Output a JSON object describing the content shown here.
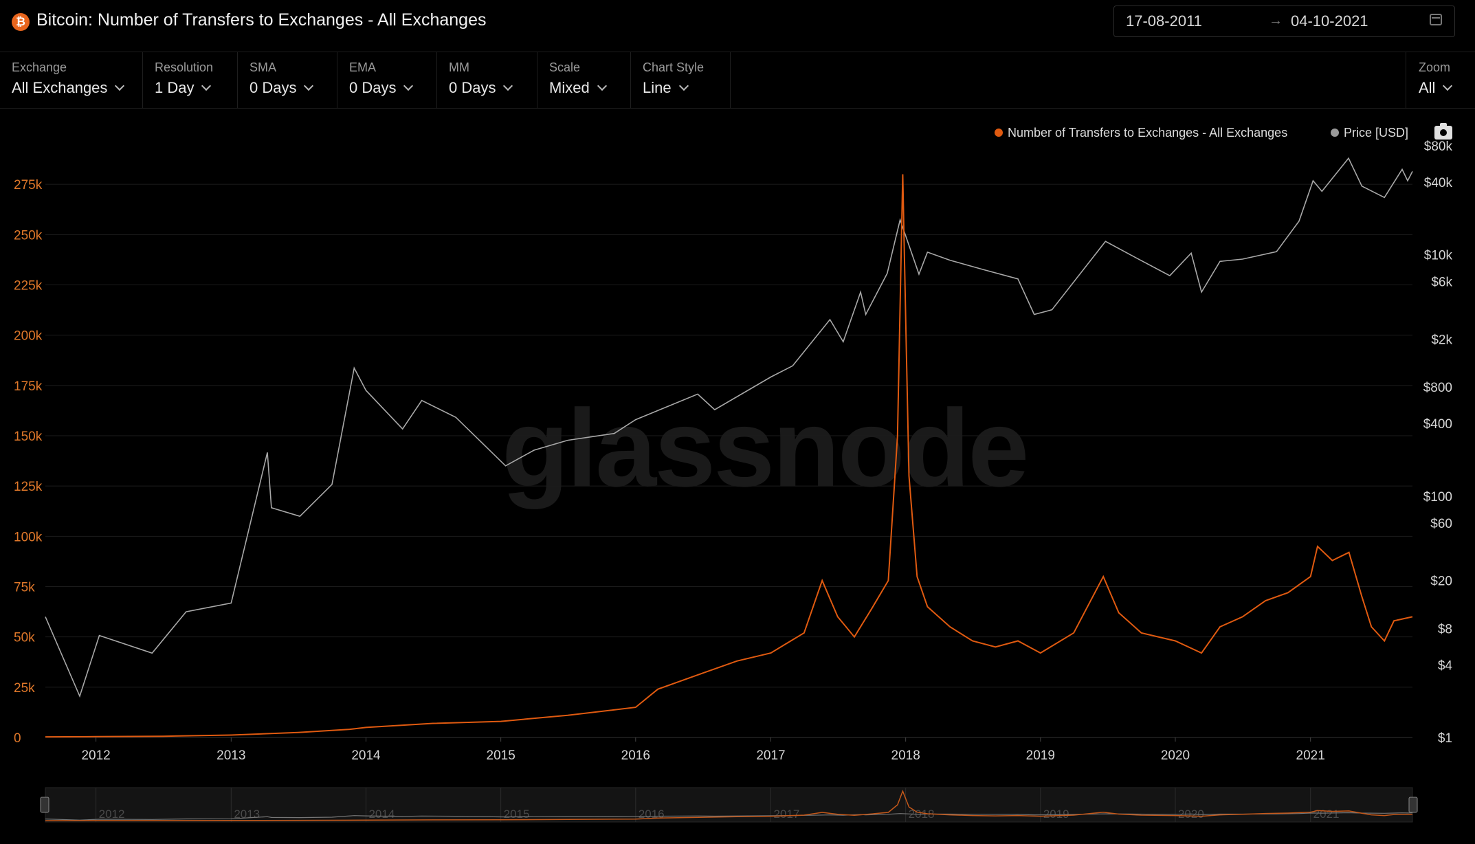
{
  "header": {
    "title": "Bitcoin: Number of Transfers to Exchanges - All Exchanges",
    "logo_glyph": "₿",
    "date_from": "17-08-2011",
    "date_arrow": "→",
    "date_to": "04-10-2021",
    "calendar_icon": "calendar-icon"
  },
  "toolbar": [
    {
      "label": "Exchange",
      "value": "All Exchanges"
    },
    {
      "label": "Resolution",
      "value": "1 Day"
    },
    {
      "label": "SMA",
      "value": "0 Days"
    },
    {
      "label": "EMA",
      "value": "0 Days"
    },
    {
      "label": "MM",
      "value": "0 Days"
    },
    {
      "label": "Scale",
      "value": "Mixed"
    },
    {
      "label": "Chart Style",
      "value": "Line"
    }
  ],
  "zoom": {
    "label": "Zoom",
    "value": "All"
  },
  "legend": {
    "series1": "Number of Transfers to Exchanges - All Exchanges",
    "series2": "Price [USD]",
    "camera_icon": "camera-icon"
  },
  "watermark": "glassnode",
  "colors": {
    "transfers": "#e05a10",
    "price": "#a0a0a0",
    "background": "#000000"
  },
  "chart_data": {
    "type": "line",
    "x_range": [
      "2011-08-17",
      "2021-10-04"
    ],
    "x_ticks": [
      "2012",
      "2013",
      "2014",
      "2015",
      "2016",
      "2017",
      "2018",
      "2019",
      "2020",
      "2021"
    ],
    "y_left": {
      "ticks": [
        "0",
        "25k",
        "50k",
        "75k",
        "100k",
        "125k",
        "150k",
        "175k",
        "200k",
        "225k",
        "250k",
        "275k"
      ],
      "range": [
        0,
        300000
      ],
      "scale": "linear"
    },
    "y_right": {
      "ticks": [
        "$1",
        "$4",
        "$8",
        "$20",
        "$60",
        "$100",
        "$400",
        "$800",
        "$2k",
        "$6k",
        "$10k",
        "$40k",
        "$80k"
      ],
      "range": [
        1,
        100000
      ],
      "scale": "log"
    },
    "grid": true,
    "legend_position": "top-right",
    "series": [
      {
        "name": "Number of Transfers to Exchanges - All Exchanges",
        "axis": "left",
        "x": [
          "2011-08-17",
          "2012-01-01",
          "2012-07-01",
          "2013-01-01",
          "2013-07-01",
          "2013-11-15",
          "2014-01-01",
          "2014-07-01",
          "2015-01-01",
          "2015-03-01",
          "2015-07-01",
          "2016-01-01",
          "2016-03-01",
          "2016-07-01",
          "2016-10-01",
          "2017-01-01",
          "2017-04-01",
          "2017-05-20",
          "2017-07-01",
          "2017-08-15",
          "2017-10-01",
          "2017-11-15",
          "2017-12-10",
          "2017-12-24",
          "2018-01-02",
          "2018-01-10",
          "2018-02-01",
          "2018-03-01",
          "2018-05-01",
          "2018-07-01",
          "2018-09-01",
          "2018-11-01",
          "2019-01-01",
          "2019-04-01",
          "2019-06-20",
          "2019-08-01",
          "2019-10-01",
          "2020-01-01",
          "2020-03-12",
          "2020-05-01",
          "2020-07-01",
          "2020-09-01",
          "2020-11-01",
          "2021-01-01",
          "2021-01-20",
          "2021-03-01",
          "2021-04-15",
          "2021-05-20",
          "2021-06-15",
          "2021-07-20",
          "2021-08-15",
          "2021-10-04"
        ],
        "y": [
          300,
          400,
          600,
          1200,
          2500,
          4000,
          5000,
          7000,
          8000,
          9000,
          11000,
          15000,
          24000,
          32000,
          38000,
          42000,
          52000,
          78000,
          60000,
          50000,
          64000,
          78000,
          150000,
          280000,
          200000,
          130000,
          80000,
          65000,
          55000,
          48000,
          45000,
          48000,
          42000,
          52000,
          80000,
          62000,
          52000,
          48000,
          42000,
          55000,
          60000,
          68000,
          72000,
          80000,
          95000,
          88000,
          92000,
          70000,
          55000,
          48000,
          58000,
          60000
        ]
      },
      {
        "name": "Price [USD]",
        "axis": "right",
        "x": [
          "2011-08-17",
          "2011-11-18",
          "2012-01-10",
          "2012-06-01",
          "2012-09-01",
          "2013-01-01",
          "2013-04-09",
          "2013-04-20",
          "2013-07-06",
          "2013-10-01",
          "2013-11-30",
          "2014-01-01",
          "2014-04-10",
          "2014-06-01",
          "2014-09-01",
          "2015-01-14",
          "2015-04-01",
          "2015-07-01",
          "2015-11-04",
          "2016-01-01",
          "2016-06-17",
          "2016-08-02",
          "2017-01-01",
          "2017-03-01",
          "2017-06-10",
          "2017-07-16",
          "2017-09-01",
          "2017-09-15",
          "2017-11-12",
          "2017-12-17",
          "2018-02-06",
          "2018-03-01",
          "2018-05-01",
          "2018-08-01",
          "2018-11-01",
          "2018-12-15",
          "2019-02-01",
          "2019-06-26",
          "2019-09-01",
          "2019-12-17",
          "2020-02-13",
          "2020-03-12",
          "2020-05-01",
          "2020-07-01",
          "2020-10-01",
          "2020-12-01",
          "2021-01-08",
          "2021-02-01",
          "2021-04-14",
          "2021-05-20",
          "2021-07-20",
          "2021-09-06",
          "2021-09-21",
          "2021-10-04"
        ],
        "y": [
          10,
          2.2,
          7,
          5,
          11,
          13,
          230,
          80,
          68,
          125,
          1150,
          750,
          360,
          620,
          450,
          178,
          240,
          290,
          330,
          430,
          700,
          520,
          970,
          1200,
          2900,
          1900,
          4900,
          3200,
          7000,
          19500,
          6900,
          10500,
          9000,
          7500,
          6300,
          3200,
          3500,
          12900,
          10000,
          6700,
          10300,
          4900,
          8800,
          9200,
          10600,
          19000,
          41000,
          33500,
          63000,
          37000,
          29800,
          51000,
          41000,
          49000
        ]
      }
    ]
  }
}
